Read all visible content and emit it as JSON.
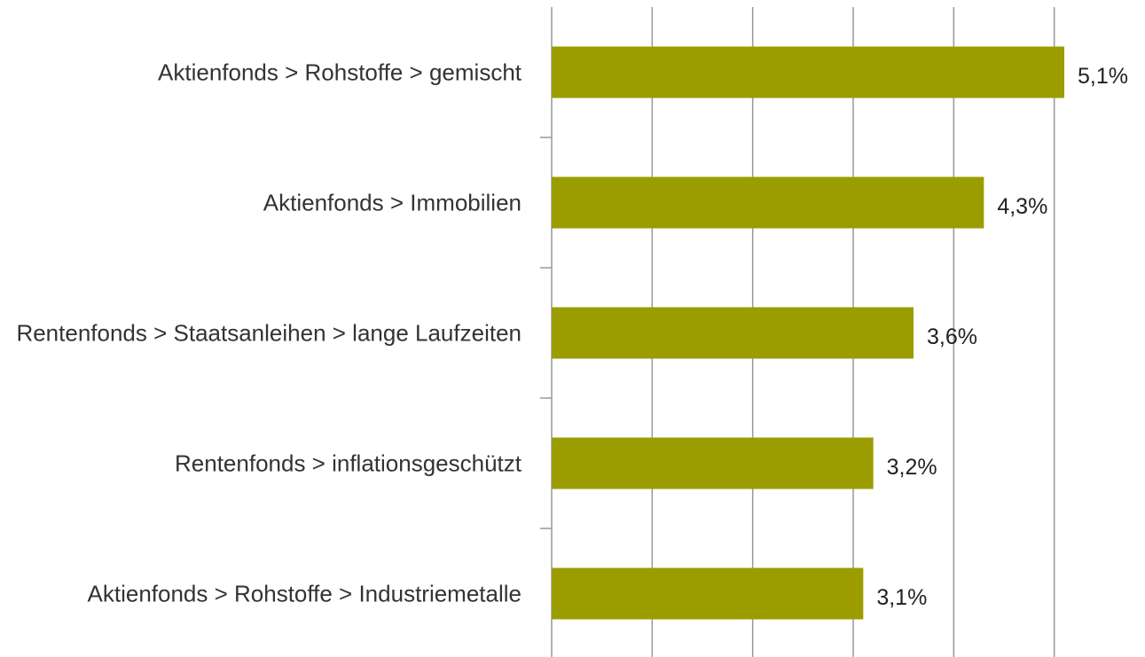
{
  "chart_data": {
    "type": "bar",
    "orientation": "horizontal",
    "categories": [
      "Aktienfonds > Rohstoffe > gemischt",
      "Aktienfonds > Immobilien",
      "Rentenfonds > Staatsanleihen > lange Laufzeiten",
      "Rentenfonds > inflationsgeschützt",
      "Aktienfonds > Rohstoffe > Industriemetalle"
    ],
    "values": [
      5.1,
      4.3,
      3.6,
      3.2,
      3.1
    ],
    "value_labels": [
      "5,1%",
      "4,3%",
      "3,6%",
      "3,2%",
      "3,1%"
    ],
    "color": "#9a9c00",
    "xlim": [
      0,
      5.1
    ],
    "xticks": [
      0,
      1,
      2,
      3,
      4,
      5
    ],
    "grid": true
  }
}
